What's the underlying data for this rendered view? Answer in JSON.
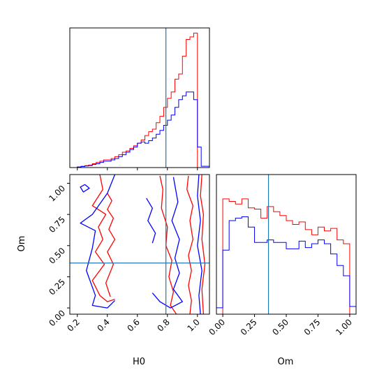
{
  "chart_data": [
    {
      "panel": "top-left",
      "type": "histogram",
      "xlabel": "",
      "ylabel": "",
      "xlim": [
        0.15,
        1.08
      ],
      "bins_x": [
        0.15,
        0.175,
        0.2,
        0.225,
        0.25,
        0.275,
        0.3,
        0.325,
        0.35,
        0.375,
        0.4,
        0.425,
        0.45,
        0.475,
        0.5,
        0.525,
        0.55,
        0.575,
        0.6,
        0.625,
        0.65,
        0.675,
        0.7,
        0.725,
        0.75,
        0.775,
        0.8,
        0.825,
        0.85,
        0.875,
        0.9,
        0.925,
        0.95,
        0.975,
        1.0,
        1.025,
        1.08
      ],
      "truth_x": 0.79,
      "series": [
        {
          "color": "#ff0000",
          "values": [
            0,
            0,
            0.005,
            0.01,
            0.015,
            0.02,
            0.03,
            0.04,
            0.05,
            0.06,
            0.06,
            0.07,
            0.085,
            0.1,
            0.12,
            0.13,
            0.15,
            0.17,
            0.19,
            0.215,
            0.25,
            0.28,
            0.3,
            0.35,
            0.4,
            0.47,
            0.54,
            0.59,
            0.69,
            0.73,
            0.87,
            1.0,
            1.02,
            1.05,
            0,
            0
          ]
        },
        {
          "color": "#0000ff",
          "values": [
            0,
            0,
            0.005,
            0.008,
            0.012,
            0.016,
            0.024,
            0.03,
            0.04,
            0.05,
            0.05,
            0.06,
            0.07,
            0.085,
            0.1,
            0.12,
            0.14,
            0.16,
            0.19,
            0.2,
            0.19,
            0.21,
            0.23,
            0.26,
            0.29,
            0.33,
            0.37,
            0.41,
            0.47,
            0.53,
            0.56,
            0.59,
            0.59,
            0.53,
            0.16,
            0.01
          ]
        }
      ]
    },
    {
      "panel": "bottom-left",
      "type": "contour",
      "xlabel": "H0",
      "ylabel": "Om",
      "xlim": [
        0.15,
        1.08
      ],
      "ylim": [
        -0.05,
        1.07
      ],
      "xticks": [
        "0.2",
        "0.4",
        "0.6",
        "0.8",
        "1.0"
      ],
      "yticks": [
        "0.00",
        "0.25",
        "0.50",
        "0.75",
        "1.00"
      ],
      "truth_x": 0.79,
      "truth_y": 0.36,
      "series": [
        {
          "color": "#ff0000",
          "contours": [
            [
              [
                0.35,
                1.07
              ],
              [
                0.37,
                0.95
              ],
              [
                0.3,
                0.82
              ],
              [
                0.39,
                0.75
              ],
              [
                0.34,
                0.65
              ],
              [
                0.37,
                0.55
              ],
              [
                0.32,
                0.45
              ],
              [
                0.38,
                0.35
              ],
              [
                0.3,
                0.22
              ],
              [
                0.35,
                0.1
              ],
              [
                0.4,
                0.05
              ],
              [
                0.45,
                0.07
              ]
            ],
            [
              [
                0.4,
                0.92
              ],
              [
                0.43,
                0.86
              ],
              [
                0.4,
                0.79
              ],
              [
                0.44,
                0.72
              ],
              [
                0.41,
                0.63
              ],
              [
                0.45,
                0.55
              ],
              [
                0.4,
                0.45
              ],
              [
                0.44,
                0.35
              ],
              [
                0.39,
                0.2
              ],
              [
                0.42,
                0.09
              ]
            ],
            [
              [
                0.75,
                1.06
              ],
              [
                0.77,
                0.95
              ],
              [
                0.76,
                0.8
              ],
              [
                0.8,
                0.65
              ],
              [
                0.79,
                0.5
              ],
              [
                0.83,
                0.38
              ],
              [
                0.81,
                0.25
              ],
              [
                0.84,
                0.13
              ],
              [
                0.82,
                0.02
              ],
              [
                0.86,
                -0.05
              ]
            ],
            [
              [
                0.94,
                1.06
              ],
              [
                0.93,
                0.95
              ],
              [
                0.97,
                0.82
              ],
              [
                0.95,
                0.7
              ],
              [
                0.97,
                0.55
              ],
              [
                0.94,
                0.42
              ],
              [
                0.96,
                0.3
              ],
              [
                0.94,
                0.18
              ],
              [
                0.96,
                0.06
              ],
              [
                0.95,
                -0.05
              ]
            ],
            [
              [
                1.03,
                1.07
              ],
              [
                1.02,
                0.9
              ],
              [
                1.04,
                0.75
              ],
              [
                1.03,
                0.55
              ],
              [
                1.05,
                0.35
              ],
              [
                1.03,
                0.15
              ],
              [
                1.04,
                -0.05
              ]
            ]
          ]
        },
        {
          "color": "#0000ff",
          "contours": [
            [
              [
                0.25,
                0.99
              ],
              [
                0.28,
                0.96
              ],
              [
                0.24,
                0.93
              ],
              [
                0.22,
                0.97
              ],
              [
                0.25,
                0.99
              ]
            ],
            [
              [
                0.45,
                1.07
              ],
              [
                0.4,
                0.92
              ],
              [
                0.3,
                0.75
              ],
              [
                0.22,
                0.68
              ],
              [
                0.32,
                0.62
              ],
              [
                0.3,
                0.48
              ],
              [
                0.26,
                0.3
              ],
              [
                0.32,
                0.1
              ],
              [
                0.3,
                0.02
              ],
              [
                0.4,
                0.0
              ],
              [
                0.45,
                0.06
              ]
            ],
            [
              [
                0.66,
                0.88
              ],
              [
                0.7,
                0.8
              ],
              [
                0.67,
                0.7
              ],
              [
                0.72,
                0.6
              ],
              [
                0.7,
                0.52
              ]
            ],
            [
              [
                0.84,
                1.05
              ],
              [
                0.87,
                0.85
              ],
              [
                0.83,
                0.7
              ],
              [
                0.88,
                0.55
              ],
              [
                0.85,
                0.4
              ],
              [
                0.88,
                0.28
              ],
              [
                0.84,
                0.15
              ],
              [
                0.9,
                0.05
              ],
              [
                0.82,
                0.0
              ],
              [
                0.75,
                0.05
              ],
              [
                0.7,
                0.12
              ]
            ],
            [
              [
                1.01,
                1.07
              ],
              [
                1.0,
                0.9
              ],
              [
                1.02,
                0.7
              ],
              [
                1.0,
                0.5
              ],
              [
                1.03,
                0.3
              ],
              [
                1.01,
                0.1
              ],
              [
                1.02,
                -0.05
              ]
            ]
          ]
        }
      ]
    },
    {
      "panel": "bottom-right",
      "type": "histogram",
      "xlabel": "Om",
      "ylabel": "",
      "xlim": [
        -0.05,
        1.05
      ],
      "xticks": [
        "0.00",
        "0.25",
        "0.50",
        "0.75",
        "1.00"
      ],
      "truth_x": 0.36,
      "bins_x": [
        -0.05,
        0.0,
        0.05,
        0.1,
        0.15,
        0.2,
        0.25,
        0.3,
        0.35,
        0.4,
        0.45,
        0.5,
        0.55,
        0.6,
        0.65,
        0.7,
        0.75,
        0.8,
        0.85,
        0.9,
        0.95,
        1.0,
        1.05
      ],
      "series": [
        {
          "color": "#ff0000",
          "values": [
            0,
            0.9,
            0.88,
            0.86,
            0.9,
            0.83,
            0.82,
            0.75,
            0.84,
            0.8,
            0.77,
            0.73,
            0.7,
            0.72,
            0.66,
            0.62,
            0.68,
            0.65,
            0.67,
            0.58,
            0.55,
            0
          ]
        },
        {
          "color": "#0000ff",
          "values": [
            0.05,
            0.5,
            0.73,
            0.75,
            0.76,
            0.68,
            0.56,
            0.56,
            0.58,
            0.56,
            0.56,
            0.51,
            0.51,
            0.57,
            0.52,
            0.55,
            0.58,
            0.55,
            0.47,
            0.38,
            0.3,
            0.06
          ]
        }
      ]
    }
  ]
}
